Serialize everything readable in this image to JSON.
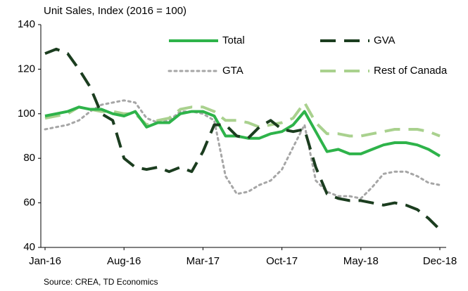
{
  "chart_data": {
    "type": "line",
    "title": "Unit Sales, Index (2016 = 100)",
    "source": "Source: CREA, TD Economics",
    "categories": [
      "Jan-16",
      null,
      null,
      null,
      null,
      null,
      null,
      "Aug-16",
      null,
      null,
      null,
      null,
      null,
      null,
      "Mar-17",
      null,
      null,
      null,
      null,
      null,
      null,
      "Oct-17",
      null,
      null,
      null,
      null,
      null,
      null,
      "May-18",
      null,
      null,
      null,
      null,
      null,
      null,
      "Dec-18"
    ],
    "series": [
      {
        "name": "Total",
        "color": "#2eb34a",
        "style": "solid",
        "values": [
          99,
          100,
          101,
          103,
          102,
          102,
          100,
          99,
          101,
          94,
          96,
          96,
          100,
          101,
          101,
          99,
          90,
          90,
          89,
          89,
          91,
          92,
          95,
          101,
          92,
          83,
          84,
          82,
          82,
          84,
          86,
          87,
          87,
          86,
          84,
          81
        ]
      },
      {
        "name": "GVA",
        "color": "#1b3d1f",
        "style": "dashed",
        "values": [
          127,
          129,
          127,
          120,
          112,
          100,
          97,
          80,
          76,
          75,
          76,
          74,
          76,
          74,
          83,
          95,
          95,
          90,
          89,
          94,
          97,
          93,
          92,
          93,
          76,
          64,
          62,
          61,
          61,
          60,
          59,
          60,
          59,
          57,
          53,
          48
        ]
      },
      {
        "name": "GTA",
        "color": "#a6a6a6",
        "style": "dotted",
        "values": [
          93,
          94,
          95,
          97,
          101,
          104,
          105,
          106,
          105,
          98,
          96,
          97,
          101,
          101,
          100,
          97,
          72,
          64,
          65,
          68,
          70,
          75,
          85,
          95,
          70,
          65,
          63,
          63,
          62,
          67,
          73,
          74,
          74,
          72,
          69,
          68
        ]
      },
      {
        "name": "Rest of Canada",
        "color": "#a9d18e",
        "style": "dashed",
        "values": [
          98,
          99,
          100,
          103,
          102,
          101,
          101,
          100,
          100,
          95,
          97,
          98,
          102,
          103,
          103,
          101,
          97,
          97,
          96,
          94,
          95,
          96,
          98,
          105,
          96,
          91,
          91,
          90,
          90,
          91,
          92,
          93,
          93,
          93,
          92,
          90
        ]
      }
    ],
    "ylim": [
      40,
      140
    ],
    "yticks": [
      40,
      60,
      80,
      100,
      120,
      140
    ],
    "grid": false,
    "legend": "upper right"
  }
}
